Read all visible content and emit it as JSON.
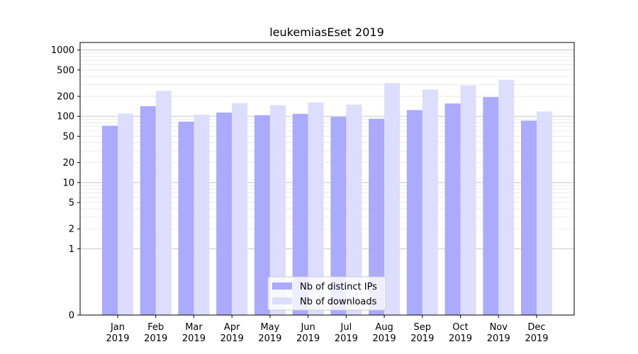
{
  "chart_data": {
    "type": "bar",
    "title": "leukemiasEset 2019",
    "xlabel": "",
    "ylabel": "",
    "yscale": "symlog",
    "ylim": [
      0,
      1300
    ],
    "yticks": [
      0,
      1,
      2,
      5,
      10,
      20,
      50,
      100,
      200,
      500,
      1000
    ],
    "grid": true,
    "legend_position": "lower-center",
    "categories": [
      [
        "Jan",
        "2019"
      ],
      [
        "Feb",
        "2019"
      ],
      [
        "Mar",
        "2019"
      ],
      [
        "Apr",
        "2019"
      ],
      [
        "May",
        "2019"
      ],
      [
        "Jun",
        "2019"
      ],
      [
        "Jul",
        "2019"
      ],
      [
        "Aug",
        "2019"
      ],
      [
        "Sep",
        "2019"
      ],
      [
        "Oct",
        "2019"
      ],
      [
        "Nov",
        "2019"
      ],
      [
        "Dec",
        "2019"
      ]
    ],
    "series": [
      {
        "name": "Nb of distinct IPs",
        "color": "#aaaaff",
        "values": [
          72,
          142,
          83,
          114,
          104,
          109,
          98,
          92,
          124,
          156,
          195,
          86
        ]
      },
      {
        "name": "Nb of downloads",
        "color": "#ddddff",
        "values": [
          110,
          242,
          106,
          158,
          147,
          162,
          150,
          318,
          254,
          292,
          355,
          118
        ]
      }
    ]
  }
}
